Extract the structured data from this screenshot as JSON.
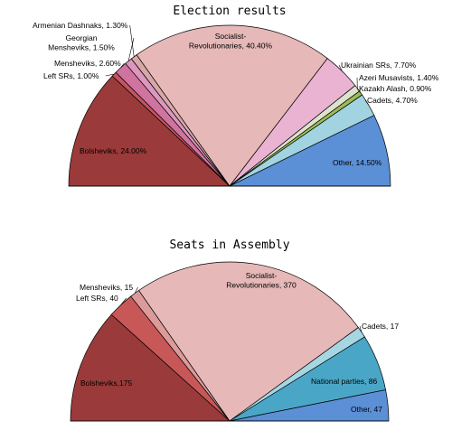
{
  "chart_data": [
    {
      "type": "pie",
      "variant": "semicircle",
      "title": "Election results",
      "unit": "percent",
      "slices": [
        {
          "name": "Bolsheviks",
          "value": 24.0,
          "label_lines": [
            "Bolsheviks, 24.00%"
          ],
          "color": "#9b3a3a"
        },
        {
          "name": "Left SRs",
          "value": 1.0,
          "label_lines": [
            "Left SRs, 1.00%"
          ],
          "color": "#c25560"
        },
        {
          "name": "Mensheviks",
          "value": 2.6,
          "label_lines": [
            "Mensheviks, 2.60%"
          ],
          "color": "#d0739f"
        },
        {
          "name": "Georgian Mensheviks",
          "value": 1.5,
          "label_lines": [
            "Georgian",
            "Mensheviks, 1.50%"
          ],
          "color": "#dd96bd"
        },
        {
          "name": "Armenian Dashnaks",
          "value": 1.3,
          "label_lines": [
            "Armenian Dashnaks, 1.30%"
          ],
          "color": "#d8a8a8"
        },
        {
          "name": "Socialist-Revolutionaries",
          "value": 40.4,
          "label_lines": [
            "Socialist-",
            "Revolutionaries, 40.40%"
          ],
          "color": "#e6b8b8"
        },
        {
          "name": "Ukrainian SRs",
          "value": 7.7,
          "label_lines": [
            "Ukrainian SRs, 7.70%"
          ],
          "color": "#eab3d2"
        },
        {
          "name": "Azeri Musavists",
          "value": 1.4,
          "label_lines": [
            "Azeri Musavists, 1.40%"
          ],
          "color": "#dde2cf"
        },
        {
          "name": "Kazakh Alash",
          "value": 0.9,
          "label_lines": [
            "Kazakh Alash, 0.90%"
          ],
          "color": "#9dbb55"
        },
        {
          "name": "Cadets",
          "value": 4.7,
          "label_lines": [
            "Cadets, 4.70%"
          ],
          "color": "#a1d3e0"
        },
        {
          "name": "Other",
          "value": 14.5,
          "label_lines": [
            "Other, 14.50%"
          ],
          "color": "#5b8fd6"
        }
      ]
    },
    {
      "type": "pie",
      "variant": "semicircle",
      "title": "Seats in Assembly",
      "unit": "seats",
      "slices": [
        {
          "name": "Bolsheviks",
          "value": 175,
          "label_lines": [
            "Bolsheviks,175"
          ],
          "color": "#9b3a3a"
        },
        {
          "name": "Left SRs",
          "value": 40,
          "label_lines": [
            "Left SRs, 40"
          ],
          "color": "#c85858"
        },
        {
          "name": "Mensheviks",
          "value": 15,
          "label_lines": [
            "Mensheviks, 15"
          ],
          "color": "#dd9a9a"
        },
        {
          "name": "Socialist-Revolutionaries",
          "value": 370,
          "label_lines": [
            "Socialist-",
            "Revolutionaries, 370"
          ],
          "color": "#e6b8b8"
        },
        {
          "name": "Cadets",
          "value": 17,
          "label_lines": [
            "Cadets, 17"
          ],
          "color": "#a7d6e3"
        },
        {
          "name": "National parties",
          "value": 86,
          "label_lines": [
            "National parties, 86"
          ],
          "color": "#4aa6c6"
        },
        {
          "name": "Other",
          "value": 47,
          "label_lines": [
            "Other, 47"
          ],
          "color": "#5b8fd6"
        }
      ]
    }
  ]
}
